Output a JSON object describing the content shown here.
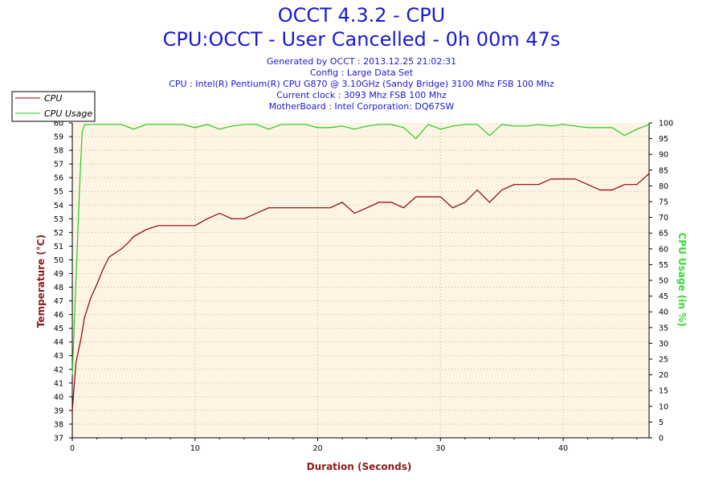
{
  "header": {
    "title": "OCCT 4.3.2 - CPU",
    "subtitle": "CPU:OCCT - User Cancelled - 0h 00m 47s",
    "info": [
      "Generated by OCCT : 2013.12.25 21:02:31",
      "Config : Large Data Set",
      "CPU : Intel(R) Pentium(R) CPU G870 @ 3.10GHz (Sandy Bridge) 3100 Mhz FSB 100 Mhz",
      "Current clock : 3093 Mhz FSB 100 Mhz",
      "MotherBoard : Intel Corporation: DQ67SW"
    ]
  },
  "colors": {
    "cpu_temp": "#8b0000",
    "cpu_usage": "#22cc22",
    "plot_bg": "#fdf4e4",
    "title": "#1818d8",
    "left_axis_title": "#8b1a1a",
    "right_axis_title": "#33dd33"
  },
  "chart_data": {
    "type": "line",
    "xlabel": "Duration (Seconds)",
    "ylabel": "Temperature (°C)",
    "y2label": "CPU Usage (in %)",
    "xlim": [
      0,
      47
    ],
    "ylim": [
      37,
      60
    ],
    "y2lim": [
      0,
      100
    ],
    "x_ticks": [
      0,
      10,
      20,
      30,
      40
    ],
    "y_ticks": [
      37,
      38,
      39,
      40,
      41,
      42,
      43,
      44,
      45,
      46,
      47,
      48,
      49,
      50,
      51,
      52,
      53,
      54,
      55,
      56,
      57,
      58,
      59,
      60
    ],
    "y2_ticks": [
      0,
      5,
      10,
      15,
      20,
      25,
      30,
      35,
      40,
      45,
      50,
      55,
      60,
      65,
      70,
      75,
      80,
      85,
      90,
      95,
      100
    ],
    "grid": true,
    "legend": "top-left",
    "series": [
      {
        "name": "CPU",
        "axis": "left",
        "x": [
          0,
          0.3,
          0.7,
          1,
          1.5,
          2,
          2.5,
          3,
          4,
          4.5,
          5,
          6,
          7,
          8,
          9,
          10,
          11,
          12,
          13,
          14,
          15,
          16,
          17,
          18,
          19,
          20,
          21,
          22,
          23,
          24,
          25,
          26,
          27,
          28,
          29,
          30,
          31,
          32,
          33,
          34,
          35,
          36,
          37,
          38,
          39,
          40,
          41,
          42,
          43,
          44,
          45,
          46,
          47
        ],
        "values": [
          39,
          42.5,
          44.2,
          45.8,
          47.2,
          48.2,
          49.3,
          50.2,
          50.8,
          51.2,
          51.7,
          52.2,
          52.5,
          52.5,
          52.5,
          52.5,
          53,
          53.4,
          53,
          53,
          53.4,
          53.8,
          53.8,
          53.8,
          53.8,
          53.8,
          53.8,
          54.2,
          53.4,
          53.8,
          54.2,
          54.2,
          53.8,
          54.6,
          54.6,
          54.6,
          53.8,
          54.2,
          55.1,
          54.2,
          55.1,
          55.5,
          55.5,
          55.5,
          55.9,
          55.9,
          55.9,
          55.5,
          55.1,
          55.1,
          55.5,
          55.5,
          56.3
        ]
      },
      {
        "name": "CPU Usage",
        "axis": "right",
        "x": [
          0,
          0.3,
          0.6,
          0.8,
          1,
          2,
          3,
          4,
          5,
          6,
          7,
          8,
          9,
          10,
          11,
          12,
          13,
          14,
          15,
          16,
          17,
          18,
          19,
          20,
          21,
          22,
          23,
          24,
          25,
          26,
          27,
          28,
          29,
          30,
          31,
          32,
          33,
          34,
          35,
          36,
          37,
          38,
          39,
          40,
          41,
          42,
          43,
          44,
          45,
          46,
          47
        ],
        "values": [
          20,
          50,
          80,
          97,
          99.5,
          99.5,
          99.5,
          99.5,
          98,
          99.5,
          99.5,
          99.5,
          99.5,
          98.5,
          99.5,
          98,
          99,
          99.5,
          99.5,
          98,
          99.5,
          99.5,
          99.5,
          98.5,
          98.5,
          99,
          98,
          99,
          99.5,
          99.5,
          98.5,
          95,
          99.5,
          98,
          99,
          99.5,
          99.5,
          96,
          99.5,
          99,
          99,
          99.5,
          99,
          99.5,
          99,
          98.5,
          98.5,
          98.5,
          96,
          98,
          99.5
        ]
      }
    ]
  }
}
